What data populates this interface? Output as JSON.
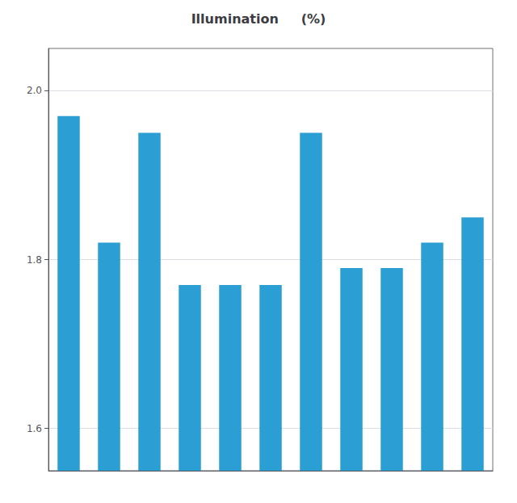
{
  "chart_data": {
    "type": "bar",
    "title": "Illumination     (%)",
    "categories": [
      null,
      null,
      null,
      null,
      null,
      null,
      null,
      null,
      null,
      null,
      null
    ],
    "values": [
      1.97,
      1.82,
      1.95,
      1.77,
      1.77,
      1.77,
      1.95,
      1.79,
      1.79,
      1.82,
      1.85
    ],
    "color": "#2b9fd4",
    "ylim": [
      1.55,
      2.05
    ],
    "yticks": [
      1.6,
      1.8,
      {
        "value": 2.0,
        "label": "2.0"
      }
    ],
    "grid": true,
    "tick_labels": "y"
  }
}
